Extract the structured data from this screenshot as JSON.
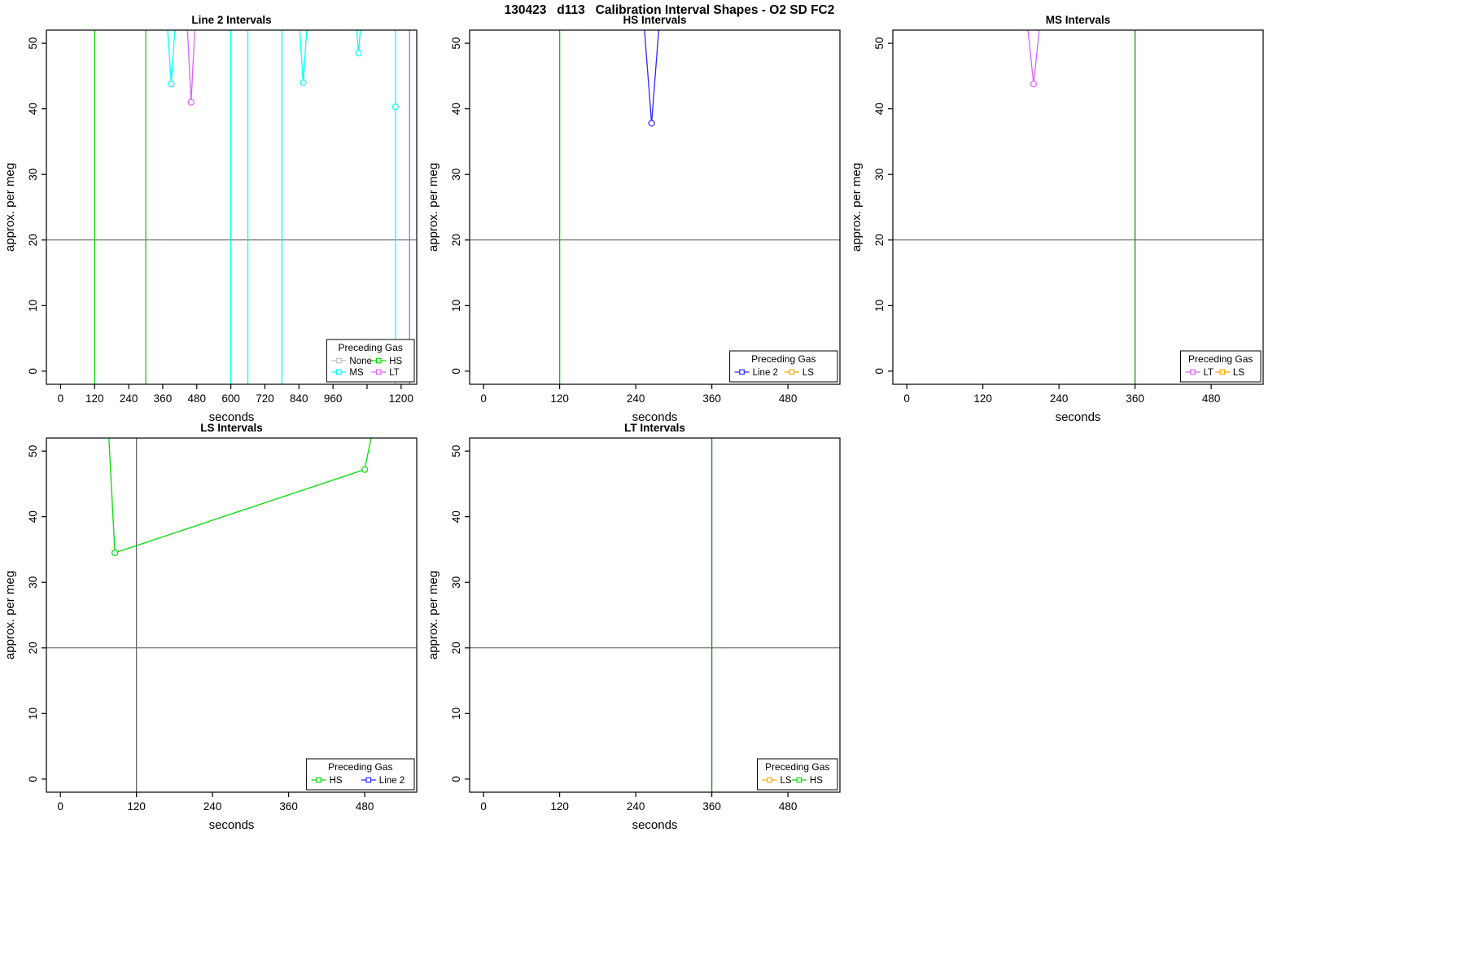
{
  "page_title": "130423   d113   Calibration Interval Shapes - O2 SD FC2",
  "chart_data": [
    {
      "type": "line",
      "title": "Line 2 Intervals",
      "xlabel": "seconds",
      "ylabel": "approx. per meg",
      "xlim": [
        -50,
        1255
      ],
      "ylim": [
        -2,
        52
      ],
      "xticks": [
        {
          "v": 0,
          "label": "0"
        },
        {
          "v": 120,
          "label": "120"
        },
        {
          "v": 240,
          "label": "240"
        },
        {
          "v": 360,
          "label": "360"
        },
        {
          "v": 480,
          "label": "480"
        },
        {
          "v": 600,
          "label": "600"
        },
        {
          "v": 720,
          "label": "720"
        },
        {
          "v": 840,
          "label": "840"
        },
        {
          "v": 960,
          "label": "960"
        },
        {
          "v": 1080,
          "label": ""
        },
        {
          "v": 1200,
          "label": "1200"
        }
      ],
      "yticks": [
        {
          "v": 0,
          "label": "0"
        },
        {
          "v": 10,
          "label": "10"
        },
        {
          "v": 20,
          "label": "20"
        },
        {
          "v": 30,
          "label": "30"
        },
        {
          "v": 40,
          "label": "40"
        },
        {
          "v": 50,
          "label": "50"
        }
      ],
      "hlines": [
        {
          "y": 20,
          "color": "#555555"
        }
      ],
      "vlines": [
        {
          "x": 120,
          "color": "#00DC00",
          "name": "HS"
        },
        {
          "x": 300,
          "color": "#00DC00",
          "name": "HS"
        },
        {
          "x": 600,
          "color": "#00FFFF",
          "name": "MS"
        },
        {
          "x": 660,
          "color": "#00FFFF",
          "name": "MS"
        },
        {
          "x": 780,
          "color": "#00FFFF",
          "name": "MS"
        },
        {
          "x": 1230,
          "color": "#9B6BFF",
          "name": "LT"
        }
      ],
      "series": [
        {
          "name": "MS",
          "color": "#00FFFF",
          "points": [
            [
              376,
              53
            ],
            [
              390,
              43.8
            ],
            [
              404,
              53
            ]
          ],
          "markers": [
            [
              390,
              43.8
            ]
          ]
        },
        {
          "name": "LT",
          "color": "#E060FF",
          "points": [
            [
              446,
              53
            ],
            [
              460,
              41.0
            ],
            [
              474,
              53
            ]
          ],
          "markers": [
            [
              460,
              41.0
            ]
          ]
        },
        {
          "name": "MS",
          "color": "#00FFFF",
          "points": [
            [
              841,
              53
            ],
            [
              855,
              44.0
            ],
            [
              869,
              53
            ]
          ],
          "markers": [
            [
              855,
              44.0
            ]
          ]
        },
        {
          "name": "MS",
          "color": "#00FFFF",
          "points": [
            [
              1042,
              53
            ],
            [
              1050,
              48.5
            ],
            [
              1058,
              53
            ]
          ],
          "markers": [
            [
              1050,
              48.5
            ]
          ]
        },
        {
          "name": "MS",
          "color": "#00FFFF",
          "points": [
            [
              1180,
              53
            ],
            [
              1180,
              -3
            ]
          ],
          "markers": [
            [
              1180,
              40.3
            ]
          ]
        }
      ],
      "legend": {
        "title": "Preceding Gas",
        "ncol": 2,
        "entries": [
          {
            "label": "None",
            "color": "#BEBEBE"
          },
          {
            "label": "MS",
            "color": "#00FFFF"
          },
          {
            "label": "HS",
            "color": "#00DC00"
          },
          {
            "label": "LT",
            "color": "#E060FF"
          }
        ]
      }
    },
    {
      "type": "line",
      "title": "HS Intervals",
      "xlabel": "seconds",
      "ylabel": "approx. per meg",
      "xlim": [
        -22,
        562
      ],
      "ylim": [
        -2,
        52
      ],
      "xticks": [
        {
          "v": 0,
          "label": "0"
        },
        {
          "v": 120,
          "label": "120"
        },
        {
          "v": 240,
          "label": "240"
        },
        {
          "v": 360,
          "label": "360"
        },
        {
          "v": 480,
          "label": "480"
        }
      ],
      "yticks": [
        {
          "v": 0,
          "label": "0"
        },
        {
          "v": 10,
          "label": "10"
        },
        {
          "v": 20,
          "label": "20"
        },
        {
          "v": 30,
          "label": "30"
        },
        {
          "v": 40,
          "label": "40"
        },
        {
          "v": 50,
          "label": "50"
        }
      ],
      "hlines": [
        {
          "y": 20,
          "color": "#555555"
        }
      ],
      "vlines": [
        {
          "x": 120,
          "color": "#00C800",
          "name": "HS"
        }
      ],
      "series": [
        {
          "name": "Line 2",
          "color": "#2828FF",
          "points": [
            [
              253,
              53
            ],
            [
              265,
              37.8
            ],
            [
              277,
              53
            ]
          ],
          "markers": [
            [
              265,
              37.8
            ]
          ]
        }
      ],
      "legend": {
        "title": "Preceding Gas",
        "ncol": 2,
        "entries": [
          {
            "label": "Line 2",
            "color": "#2828FF"
          },
          {
            "label": "LS",
            "color": "#FFA500"
          }
        ]
      }
    },
    {
      "type": "line",
      "title": "MS Intervals",
      "xlabel": "seconds",
      "ylabel": "approx. per meg",
      "xlim": [
        -22,
        562
      ],
      "ylim": [
        -2,
        52
      ],
      "xticks": [
        {
          "v": 0,
          "label": "0"
        },
        {
          "v": 120,
          "label": "120"
        },
        {
          "v": 240,
          "label": "240"
        },
        {
          "v": 360,
          "label": "360"
        },
        {
          "v": 480,
          "label": "480"
        }
      ],
      "yticks": [
        {
          "v": 0,
          "label": "0"
        },
        {
          "v": 10,
          "label": "10"
        },
        {
          "v": 20,
          "label": "20"
        },
        {
          "v": 30,
          "label": "30"
        },
        {
          "v": 40,
          "label": "40"
        },
        {
          "v": 50,
          "label": "50"
        }
      ],
      "hlines": [
        {
          "y": 20,
          "color": "#555555"
        }
      ],
      "vlines": [
        {
          "x": 360,
          "color": "#228B22",
          "name": "HS"
        }
      ],
      "series": [
        {
          "name": "LT",
          "color": "#E060FF",
          "points": [
            [
              190,
              53
            ],
            [
              200,
              43.8
            ],
            [
              210,
              53
            ]
          ],
          "markers": [
            [
              200,
              43.8
            ]
          ]
        }
      ],
      "legend": {
        "title": "Preceding Gas",
        "ncol": 2,
        "entries": [
          {
            "label": "LT",
            "color": "#E060FF"
          },
          {
            "label": "LS",
            "color": "#FFA500"
          }
        ]
      }
    },
    {
      "type": "line",
      "title": "LS Intervals",
      "xlabel": "seconds",
      "ylabel": "approx. per meg",
      "xlim": [
        -22,
        562
      ],
      "ylim": [
        -2,
        52
      ],
      "xticks": [
        {
          "v": 0,
          "label": "0"
        },
        {
          "v": 120,
          "label": "120"
        },
        {
          "v": 240,
          "label": "240"
        },
        {
          "v": 360,
          "label": "360"
        },
        {
          "v": 480,
          "label": "480"
        }
      ],
      "yticks": [
        {
          "v": 0,
          "label": "0"
        },
        {
          "v": 10,
          "label": "10"
        },
        {
          "v": 20,
          "label": "20"
        },
        {
          "v": 30,
          "label": "30"
        },
        {
          "v": 40,
          "label": "40"
        },
        {
          "v": 50,
          "label": "50"
        }
      ],
      "hlines": [
        {
          "y": 20,
          "color": "#555555"
        }
      ],
      "vlines": [
        {
          "x": 120,
          "color": "#666666",
          "name": "None"
        }
      ],
      "series": [
        {
          "name": "HS",
          "color": "#00DC00",
          "points": [
            [
              76,
              53
            ],
            [
              86,
              34.5
            ],
            [
              480,
              47.2
            ],
            [
              492,
              53
            ]
          ],
          "markers": [
            [
              86,
              34.5
            ],
            [
              480,
              47.2
            ]
          ]
        }
      ],
      "legend": {
        "title": "Preceding Gas",
        "ncol": 2,
        "entries": [
          {
            "label": "HS",
            "color": "#00DC00"
          },
          {
            "label": "Line 2",
            "color": "#2828FF"
          }
        ]
      }
    },
    {
      "type": "line",
      "title": "LT Intervals",
      "xlabel": "seconds",
      "ylabel": "approx. per meg",
      "xlim": [
        -22,
        562
      ],
      "ylim": [
        -2,
        52
      ],
      "xticks": [
        {
          "v": 0,
          "label": "0"
        },
        {
          "v": 120,
          "label": "120"
        },
        {
          "v": 240,
          "label": "240"
        },
        {
          "v": 360,
          "label": "360"
        },
        {
          "v": 480,
          "label": "480"
        }
      ],
      "yticks": [
        {
          "v": 0,
          "label": "0"
        },
        {
          "v": 10,
          "label": "10"
        },
        {
          "v": 20,
          "label": "20"
        },
        {
          "v": 30,
          "label": "30"
        },
        {
          "v": 40,
          "label": "40"
        },
        {
          "v": 50,
          "label": "50"
        }
      ],
      "hlines": [
        {
          "y": 20,
          "color": "#555555"
        }
      ],
      "vlines": [
        {
          "x": 360,
          "color": "#228B22",
          "name": "HS"
        }
      ],
      "series": [],
      "legend": {
        "title": "Preceding Gas",
        "ncol": 2,
        "entries": [
          {
            "label": "LS",
            "color": "#FFA500"
          },
          {
            "label": "HS",
            "color": "#00DC00"
          }
        ]
      }
    }
  ]
}
